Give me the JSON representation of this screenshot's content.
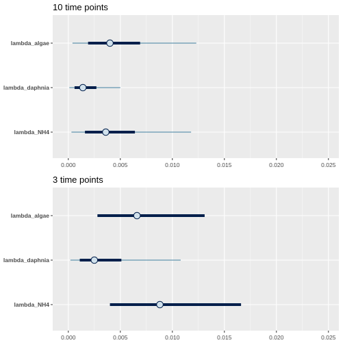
{
  "chart_data": [
    {
      "type": "interval",
      "title": "10 time points",
      "xlabel": "",
      "ylabel": "",
      "xlim": [
        -0.0015,
        0.026
      ],
      "xticks": [
        "0.000",
        "0.005",
        "0.010",
        "0.015",
        "0.020",
        "0.025"
      ],
      "xtick_values": [
        0,
        0.005,
        0.01,
        0.015,
        0.02,
        0.025
      ],
      "categories": [
        "lambda_algae",
        "lambda_daphnia",
        "lambda_NH4"
      ],
      "point": [
        0.004,
        0.0014,
        0.0036
      ],
      "inner_low": [
        0.0019,
        0.0006,
        0.0016
      ],
      "inner_high": [
        0.0069,
        0.0027,
        0.0064
      ],
      "outer_low": [
        0.0004,
        0.0001,
        0.0003
      ],
      "outer_high": [
        0.0123,
        0.005,
        0.0118
      ],
      "grid": true,
      "legend": "none"
    },
    {
      "type": "interval",
      "title": "3 time points",
      "xlabel": "",
      "ylabel": "",
      "xlim": [
        -0.0015,
        0.026
      ],
      "xticks": [
        "0.000",
        "0.005",
        "0.010",
        "0.015",
        "0.020",
        "0.025"
      ],
      "xtick_values": [
        0,
        0.005,
        0.01,
        0.015,
        0.02,
        0.025
      ],
      "categories": [
        "lambda_algae",
        "lambda_daphnia",
        "lambda_NH4"
      ],
      "point": [
        0.0066,
        0.0025,
        0.0088
      ],
      "inner_low": [
        0.0028,
        0.0011,
        0.004
      ],
      "inner_high": [
        0.0131,
        0.0051,
        0.0166
      ],
      "outer_low": [
        0.0028,
        0.0002,
        0.004
      ],
      "outer_high": [
        0.0131,
        0.0108,
        0.0166
      ],
      "grid": true,
      "legend": "none"
    }
  ],
  "colors": {
    "panel_bg": "#ebebeb",
    "grid_major": "#ffffff",
    "outer_line": "#6497b1",
    "inner_line": "#011f4b",
    "point_fill": "#d1e1ec",
    "point_stroke": "#011f4b",
    "tick_text": "#4d4d4d"
  }
}
